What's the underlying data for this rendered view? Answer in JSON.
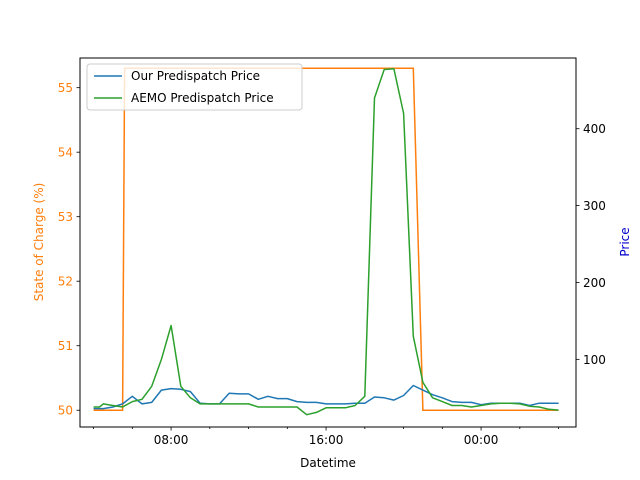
{
  "chart_data": {
    "type": "line",
    "xlabel": "Datetime",
    "ylabel_left": "State of Charge (%)",
    "ylabel_right": "Price",
    "colors": {
      "soc": "#ff7f0e",
      "our_price": "#1f77b4",
      "aemo_price": "#2ca02c",
      "right_label": "#0000cd"
    },
    "x_ticks": [
      {
        "t": 8,
        "label": "08:00"
      },
      {
        "t": 16,
        "label": "16:00"
      },
      {
        "t": 24,
        "label": "00:00"
      }
    ],
    "xlim": [
      3.3,
      28.9
    ],
    "ylim_left": [
      49.74,
      55.46
    ],
    "ylim_right": [
      12,
      492
    ],
    "left_ticks": [
      50,
      51,
      52,
      53,
      54,
      55
    ],
    "right_ticks": [
      100,
      200,
      300,
      400
    ],
    "legend": {
      "position": "top-left",
      "entries": [
        "Our Predispatch Price",
        "AEMO Predispatch Price"
      ]
    },
    "soc_series": {
      "x": [
        4,
        5.0,
        5.5,
        5.6,
        7,
        12,
        18,
        20.5,
        21.0,
        22,
        28
      ],
      "y": [
        50,
        50,
        50,
        55.3,
        55.3,
        55.3,
        55.3,
        55.3,
        50,
        50,
        50
      ]
    },
    "series": [
      {
        "name": "Our Predispatch Price",
        "x": [
          4,
          4.5,
          5,
          5.5,
          6,
          6.5,
          7,
          7.5,
          8,
          8.5,
          9,
          9.5,
          10,
          10.5,
          11,
          11.5,
          12,
          12.5,
          13,
          13.5,
          14,
          14.5,
          15,
          15.5,
          16,
          16.5,
          17,
          17.5,
          18,
          18.5,
          19,
          19.5,
          20,
          20.5,
          21,
          21.5,
          22,
          22.5,
          23,
          23.5,
          24,
          24.5,
          25,
          25.5,
          26,
          26.5,
          27,
          27.5,
          28
        ],
        "y": [
          36,
          36,
          38,
          42,
          52,
          42,
          44,
          60,
          62,
          61,
          58,
          43,
          42,
          42,
          56,
          55,
          55,
          48,
          52,
          49,
          49,
          45,
          44,
          44,
          42,
          42,
          42,
          43,
          43,
          51,
          50,
          47,
          53,
          66,
          60,
          54,
          50,
          45,
          44,
          44,
          41,
          43,
          43,
          43,
          43,
          40,
          43,
          43,
          43
        ]
      },
      {
        "name": "AEMO Predispatch Price",
        "x": [
          4,
          4.3,
          4.5,
          5,
          5.5,
          6,
          6.5,
          7,
          7.5,
          8,
          8.5,
          9,
          9.5,
          10,
          10.5,
          11,
          11.5,
          12,
          12.5,
          13,
          13.5,
          14,
          14.5,
          15,
          15.5,
          16,
          16.5,
          17,
          17.5,
          18,
          18.5,
          19,
          19.5,
          20,
          20.5,
          21,
          21.5,
          22,
          22.5,
          23,
          23.5,
          24,
          24.5,
          25,
          25.5,
          26,
          26.5,
          27,
          27.5,
          28
        ],
        "y": [
          38,
          38,
          42,
          40,
          38,
          45,
          48,
          65,
          100,
          144,
          65,
          50,
          42,
          42,
          42,
          42,
          42,
          42,
          38,
          38,
          38,
          38,
          38,
          28,
          31,
          37,
          37,
          37,
          40,
          52,
          440,
          477,
          478,
          420,
          130,
          70,
          50,
          45,
          40,
          40,
          38,
          40,
          42,
          43,
          43,
          42,
          39,
          38,
          35,
          34
        ]
      }
    ]
  }
}
